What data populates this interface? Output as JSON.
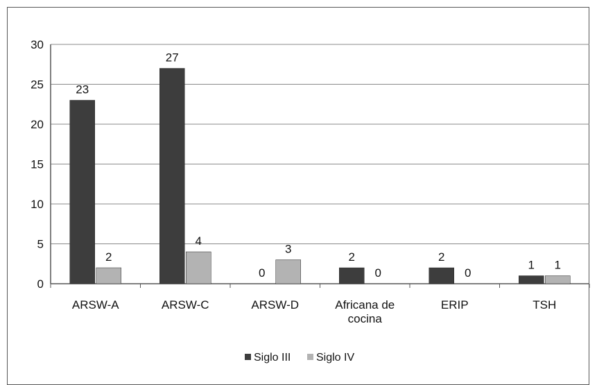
{
  "chart_data": {
    "type": "bar",
    "title": "",
    "xlabel": "",
    "ylabel": "",
    "categories": [
      [
        "ARSW-A"
      ],
      [
        "ARSW-C"
      ],
      [
        "ARSW-D"
      ],
      [
        "Africana de",
        "cocina"
      ],
      [
        "ERIP"
      ],
      [
        "TSH"
      ]
    ],
    "series": [
      {
        "name": "Siglo III",
        "values": [
          23,
          27,
          0,
          2,
          2,
          1
        ],
        "color": "#3d3d3d",
        "labels": [
          "23",
          "27",
          "0",
          "2",
          "2",
          "1"
        ]
      },
      {
        "name": "Siglo IV",
        "values": [
          2,
          4,
          3,
          0,
          0,
          1
        ],
        "color": "#b3b3b3",
        "labels": [
          "2",
          "4",
          "3",
          "0",
          "0",
          "1"
        ]
      }
    ],
    "ylim": [
      0,
      30
    ],
    "yticks": [
      0,
      5,
      10,
      15,
      20,
      25,
      30
    ],
    "grid": true,
    "legend_position": "bottom"
  }
}
